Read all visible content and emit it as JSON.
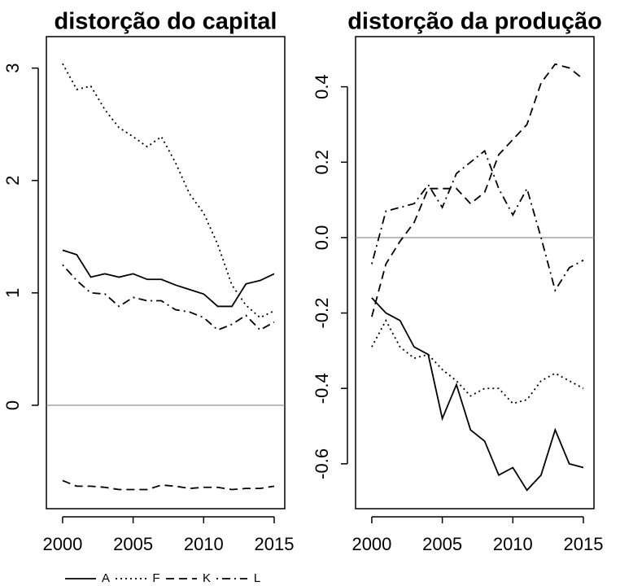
{
  "chart_data": [
    {
      "type": "line",
      "title": "distorção do capital",
      "x": [
        2000,
        2001,
        2002,
        2003,
        2004,
        2005,
        2006,
        2007,
        2008,
        2009,
        2010,
        2011,
        2012,
        2013,
        2014,
        2015
      ],
      "xlim": [
        1998.85,
        2015.75
      ],
      "xticks": [
        2000,
        2005,
        2010,
        2015
      ],
      "ylim": [
        -0.92,
        3.28
      ],
      "yticks": [
        0,
        1,
        2,
        3
      ],
      "hline": 0,
      "series": [
        {
          "name": "A",
          "color": "#000000",
          "dash": "solid",
          "values": [
            1.38,
            1.34,
            1.14,
            1.17,
            1.14,
            1.17,
            1.12,
            1.12,
            1.07,
            1.03,
            0.99,
            0.88,
            0.88,
            1.08,
            1.11,
            1.17
          ]
        },
        {
          "name": "F",
          "color": "#000000",
          "dash": "dotted",
          "values": [
            3.04,
            2.81,
            2.84,
            2.63,
            2.47,
            2.39,
            2.3,
            2.39,
            2.16,
            1.88,
            1.71,
            1.43,
            1.07,
            0.89,
            0.78,
            0.84
          ]
        },
        {
          "name": "K",
          "color": "#000000",
          "dash": "dashed",
          "values": [
            -0.67,
            -0.72,
            -0.72,
            -0.73,
            -0.75,
            -0.75,
            -0.75,
            -0.71,
            -0.72,
            -0.74,
            -0.73,
            -0.73,
            -0.75,
            -0.74,
            -0.74,
            -0.72
          ]
        },
        {
          "name": "L",
          "color": "#000000",
          "dash": "dotdash",
          "values": [
            1.25,
            1.11,
            1.0,
            0.99,
            0.88,
            0.96,
            0.93,
            0.93,
            0.85,
            0.83,
            0.78,
            0.67,
            0.72,
            0.8,
            0.67,
            0.74
          ]
        }
      ]
    },
    {
      "type": "line",
      "title": "distorção da produção",
      "x": [
        2000,
        2001,
        2002,
        2003,
        2004,
        2005,
        2006,
        2007,
        2008,
        2009,
        2010,
        2011,
        2012,
        2013,
        2014,
        2015
      ],
      "xlim": [
        1998.85,
        2015.75
      ],
      "xticks": [
        2000,
        2005,
        2010,
        2015
      ],
      "ylim": [
        -0.719,
        0.533
      ],
      "yticks": [
        -0.6,
        -0.4,
        -0.2,
        {
          "value": 0,
          "label": "0.0"
        },
        0.2,
        0.4
      ],
      "hline": 0,
      "series": [
        {
          "name": "A",
          "color": "#000000",
          "dash": "solid",
          "values": [
            -0.16,
            -0.2,
            -0.22,
            -0.29,
            -0.31,
            -0.48,
            -0.39,
            -0.51,
            -0.54,
            -0.63,
            -0.61,
            -0.67,
            -0.63,
            -0.51,
            -0.6,
            -0.61
          ]
        },
        {
          "name": "F",
          "color": "#000000",
          "dash": "dotted",
          "values": [
            -0.29,
            -0.22,
            -0.29,
            -0.32,
            -0.31,
            -0.35,
            -0.38,
            -0.42,
            -0.4,
            -0.4,
            -0.44,
            -0.43,
            -0.38,
            -0.36,
            -0.38,
            -0.4
          ]
        },
        {
          "name": "K",
          "color": "#000000",
          "dash": "dashed",
          "values": [
            -0.21,
            -0.07,
            -0.01,
            0.04,
            0.13,
            0.13,
            0.13,
            0.09,
            0.12,
            0.22,
            0.26,
            0.3,
            0.41,
            0.46,
            0.45,
            0.42
          ]
        },
        {
          "name": "L",
          "color": "#000000",
          "dash": "dotdash",
          "values": [
            -0.07,
            0.07,
            0.08,
            0.09,
            0.14,
            0.08,
            0.17,
            0.2,
            0.23,
            0.13,
            0.06,
            0.13,
            0.0,
            -0.14,
            -0.08,
            -0.06
          ]
        }
      ]
    }
  ]
}
